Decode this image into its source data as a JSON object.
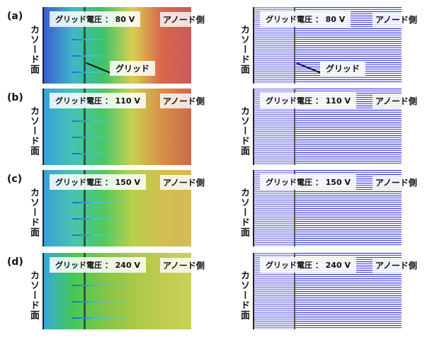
{
  "side_label": "カソード面",
  "anode_label": "アノード側",
  "grid_label": "グリッド",
  "panels": [
    {
      "tag": "(a)",
      "voltage": "グリッド電圧 ： 80 V",
      "colors": [
        "#3a5fd0",
        "#3fb8c8",
        "#3cc26a",
        "#d8d050",
        "#d8664c",
        "#cc5a5a"
      ]
    },
    {
      "tag": "(b)",
      "voltage": "グリッド電圧 ： 110 V",
      "colors": [
        "#3aa0d8",
        "#45c4b4",
        "#48c66a",
        "#c8d050",
        "#d89048",
        "#c86a4a"
      ]
    },
    {
      "tag": "(c)",
      "voltage": "グリッド電圧 ： 150 V",
      "colors": [
        "#3a9fd8",
        "#48c4b0",
        "#50c860",
        "#b8d048",
        "#d0c050",
        "#d8b858"
      ]
    },
    {
      "tag": "(d)",
      "voltage": "グリッド電圧 ： 240 V",
      "colors": [
        "#3aa8d8",
        "#44c858",
        "#80c648",
        "#a8c848",
        "#c0cc50",
        "#c8d058"
      ]
    }
  ]
}
